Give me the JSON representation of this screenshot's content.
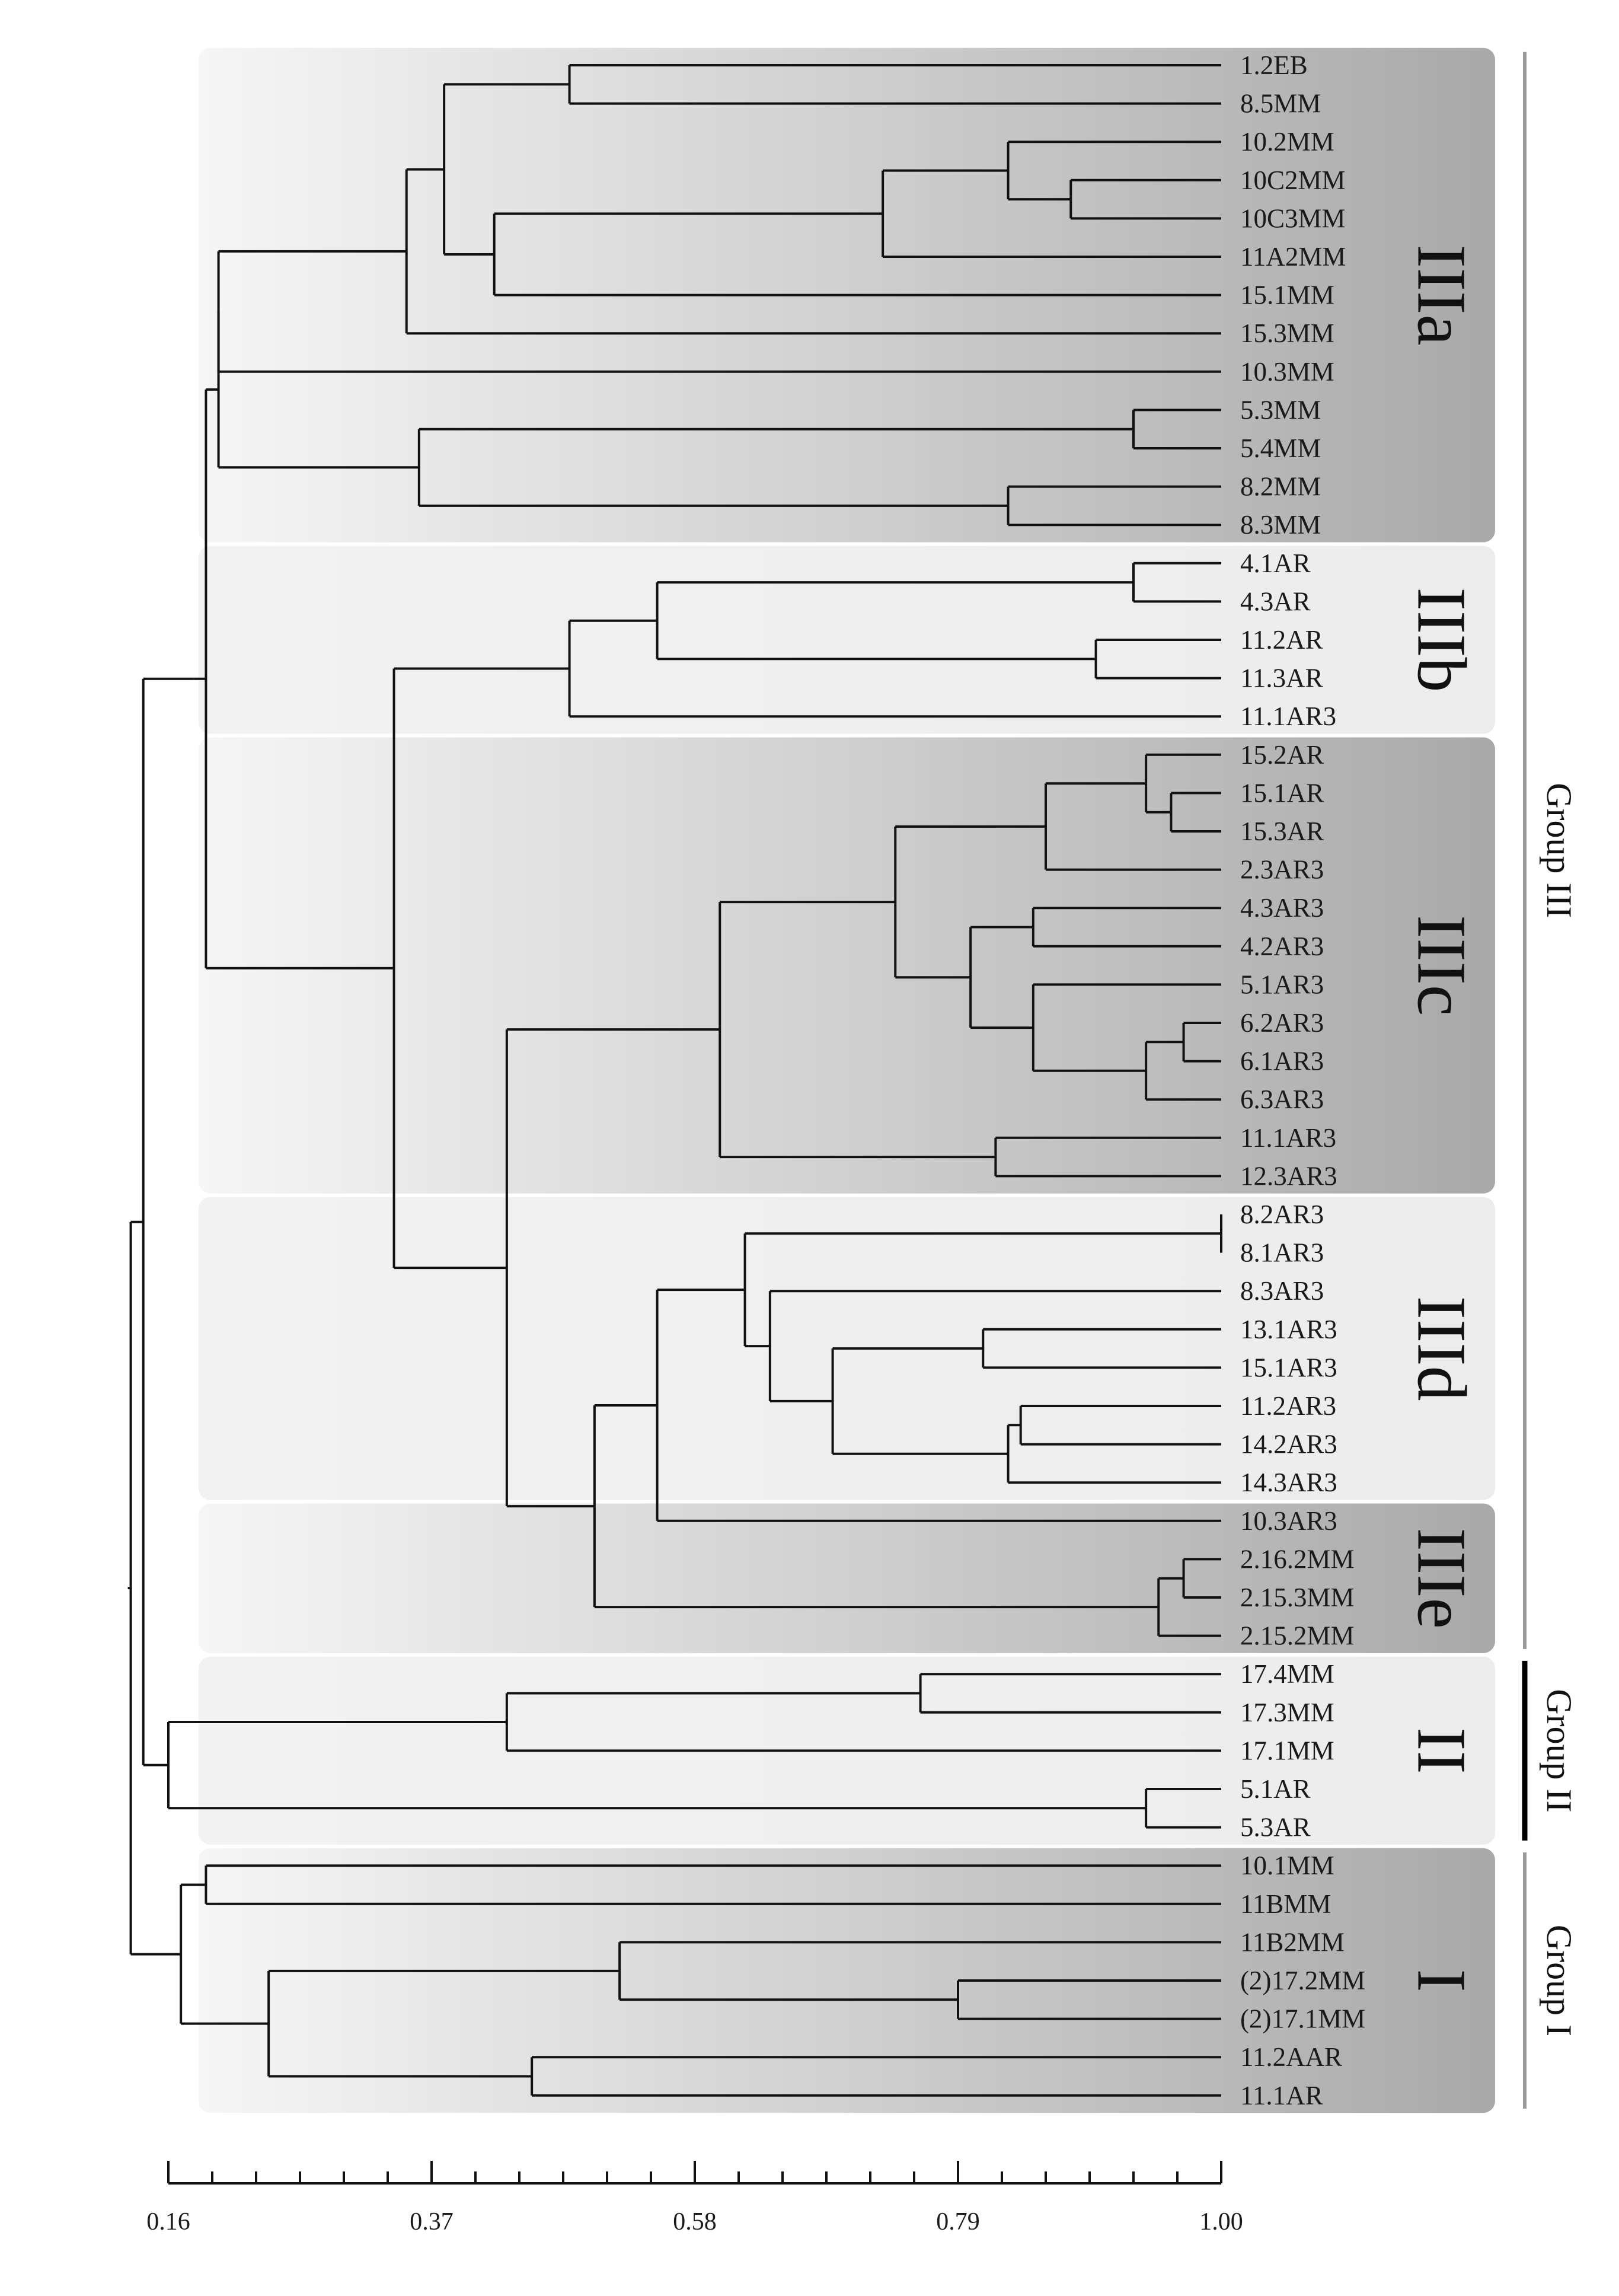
{
  "axis": {
    "ticks": [
      {
        "value": 0.16,
        "label": "0.16"
      },
      {
        "value": 0.37,
        "label": "0.37"
      },
      {
        "value": 0.58,
        "label": "0.58"
      },
      {
        "value": 0.79,
        "label": "0.79"
      },
      {
        "value": 1.0,
        "label": "1.00"
      }
    ],
    "min": 0.16,
    "max": 1.0
  },
  "leaves": [
    "1.2EB",
    "8.5MM",
    "10.2MM",
    "10C2MM",
    "10C3MM",
    "11A2MM",
    "15.1MM",
    "15.3MM",
    "10.3MM",
    "5.3MM",
    "5.4MM",
    "8.2MM",
    "8.3MM",
    "4.1AR",
    "4.3AR",
    "11.2AR",
    "11.3AR",
    "11.1AR3",
    "15.2AR",
    "15.1AR",
    "15.3AR",
    "2.3AR3",
    "4.3AR3",
    "4.2AR3",
    "5.1AR3",
    "6.2AR3",
    "6.1AR3",
    "6.3AR3",
    "11.1AR3",
    "12.3AR3",
    "8.2AR3",
    "8.1AR3",
    "8.3AR3",
    "13.1AR3",
    "15.1AR3",
    "11.2AR3",
    "14.2AR3",
    "14.3AR3",
    "10.3AR3",
    "2.16.2MM",
    "2.15.3MM",
    "2.15.2MM",
    "17.4MM",
    "17.3MM",
    "17.1MM",
    "5.1AR",
    "5.3AR",
    "10.1MM",
    "11BMM",
    "11B2MM",
    "(2)17.2MM",
    "(2)17.1MM",
    "11.2AAR",
    "11.1AR"
  ],
  "clusters": [
    {
      "label": "IIIa",
      "first": 0,
      "last": 12,
      "shade": "dark"
    },
    {
      "label": "IIIb",
      "first": 13,
      "last": 17,
      "shade": "light"
    },
    {
      "label": "IIIc",
      "first": 18,
      "last": 29,
      "shade": "dark"
    },
    {
      "label": "IIId",
      "first": 30,
      "last": 37,
      "shade": "light"
    },
    {
      "label": "IIIe",
      "first": 38,
      "last": 41,
      "shade": "dark"
    },
    {
      "label": "II",
      "first": 42,
      "last": 46,
      "shade": "light"
    },
    {
      "label": "I",
      "first": 47,
      "last": 53,
      "shade": "dark"
    }
  ],
  "groups": [
    {
      "label": "Group III",
      "first": 0,
      "last": 41,
      "style": "gray"
    },
    {
      "label": "Group II",
      "first": 42,
      "last": 46,
      "style": "black"
    },
    {
      "label": "Group I",
      "first": 47,
      "last": 53,
      "style": "gray"
    }
  ],
  "tree": {
    "s": 0.13,
    "c": [
      {
        "s": 0.14,
        "c": [
          {
            "s": 0.18,
            "c": [
              {
                "s": 0.19,
                "c": [
                  {
                    "s": 0.2,
                    "c": [
                      {
                        "s": 0.2,
                        "c": [
                          {
                            "s": 0.35,
                            "c": [
                              {
                                "s": 0.38,
                                "c": [
                                  {
                                    "s": 0.48,
                                    "c": [
                                      {
                                        "l": 0
                                      },
                                      {
                                        "l": 1
                                      }
                                    ]
                                  },
                                  {
                                    "s": 0.42,
                                    "c": [
                                      {
                                        "s": 0.73,
                                        "c": [
                                          {
                                            "s": 0.83,
                                            "c": [
                                              {
                                                "l": 2
                                              },
                                              {
                                                "s": 0.88,
                                                "c": [
                                                  {
                                                    "l": 3
                                                  },
                                                  {
                                                    "l": 4
                                                  }
                                                ]
                                              }
                                            ]
                                          },
                                          {
                                            "l": 5
                                          }
                                        ]
                                      },
                                      {
                                        "l": 6
                                      }
                                    ]
                                  }
                                ]
                              },
                              {
                                "l": 7
                              }
                            ]
                          },
                          {
                            "l": 8
                          }
                        ]
                      },
                      {
                        "s": 0.36,
                        "c": [
                          {
                            "s": 0.93,
                            "c": [
                              {
                                "l": 9
                              },
                              {
                                "l": 10
                              }
                            ]
                          },
                          {
                            "s": 0.83,
                            "c": [
                              {
                                "l": 11
                              },
                              {
                                "l": 12
                              }
                            ]
                          }
                        ]
                      }
                    ]
                  },
                  {
                    "s": 0.34,
                    "c": [
                      {
                        "s": 0.48,
                        "c": [
                          {
                            "s": 0.55,
                            "c": [
                              {
                                "s": 0.93,
                                "c": [
                                  {
                                    "l": 13
                                  },
                                  {
                                    "l": 14
                                  }
                                ]
                              },
                              {
                                "s": 0.9,
                                "c": [
                                  {
                                    "l": 15
                                  },
                                  {
                                    "l": 16
                                  }
                                ]
                              }
                            ]
                          },
                          {
                            "l": 17
                          }
                        ]
                      },
                      {
                        "s": 0.43,
                        "c": [
                          {
                            "s": 0.6,
                            "c": [
                              {
                                "s": 0.74,
                                "c": [
                                  {
                                    "s": 0.86,
                                    "c": [
                                      {
                                        "s": 0.94,
                                        "c": [
                                          {
                                            "l": 18
                                          },
                                          {
                                            "s": 0.96,
                                            "c": [
                                              {
                                                "l": 19
                                              },
                                              {
                                                "l": 20
                                              }
                                            ]
                                          }
                                        ]
                                      },
                                      {
                                        "l": 21
                                      }
                                    ]
                                  },
                                  {
                                    "s": 0.8,
                                    "c": [
                                      {
                                        "s": 0.85,
                                        "c": [
                                          {
                                            "l": 22
                                          },
                                          {
                                            "l": 23
                                          }
                                        ]
                                      },
                                      {
                                        "s": 0.85,
                                        "c": [
                                          {
                                            "l": 24
                                          },
                                          {
                                            "s": 0.94,
                                            "c": [
                                              {
                                                "s": 0.97,
                                                "c": [
                                                  {
                                                    "l": 25
                                                  },
                                                  {
                                                    "l": 26
                                                  }
                                                ]
                                              },
                                              {
                                                "l": 27
                                              }
                                            ]
                                          }
                                        ]
                                      }
                                    ]
                                  }
                                ]
                              },
                              {
                                "s": 0.82,
                                "c": [
                                  {
                                    "l": 28
                                  },
                                  {
                                    "l": 29
                                  }
                                ]
                              }
                            ]
                          },
                          {
                            "s": 0.5,
                            "c": [
                              {
                                "s": 0.55,
                                "c": [
                                  {
                                    "s": 0.62,
                                    "c": [
                                      {
                                        "s": 1.0,
                                        "c": [
                                          {
                                            "l": 30
                                          },
                                          {
                                            "l": 31
                                          }
                                        ]
                                      },
                                      {
                                        "s": 0.64,
                                        "c": [
                                          {
                                            "l": 32
                                          },
                                          {
                                            "s": 0.69,
                                            "c": [
                                              {
                                                "s": 0.81,
                                                "c": [
                                                  {
                                                    "l": 33
                                                  },
                                                  {
                                                    "l": 34
                                                  }
                                                ]
                                              },
                                              {
                                                "s": 0.83,
                                                "c": [
                                                  {
                                                    "s": 0.84,
                                                    "c": [
                                                      {
                                                        "l": 35
                                                      },
                                                      {
                                                        "l": 36
                                                      }
                                                    ]
                                                  },
                                                  {
                                                    "l": 37
                                                  }
                                                ]
                                              }
                                            ]
                                          }
                                        ]
                                      }
                                    ]
                                  },
                                  {
                                    "l": 38
                                  }
                                ]
                              },
                              {
                                "s": 0.95,
                                "c": [
                                  {
                                    "s": 0.97,
                                    "c": [
                                      {
                                        "l": 39
                                      },
                                      {
                                        "l": 40
                                      }
                                    ]
                                  },
                                  {
                                    "l": 41
                                  }
                                ]
                              }
                            ]
                          }
                        ]
                      }
                    ]
                  }
                ]
              }
            ]
          },
          {
            "s": 0.16,
            "c": [
              {
                "s": 0.43,
                "c": [
                  {
                    "s": 0.76,
                    "c": [
                      {
                        "l": 42
                      },
                      {
                        "l": 43
                      }
                    ]
                  },
                  {
                    "l": 44
                  }
                ]
              },
              {
                "s": 0.94,
                "c": [
                  {
                    "l": 45
                  },
                  {
                    "l": 46
                  }
                ]
              }
            ]
          }
        ]
      },
      {
        "s": 0.17,
        "c": [
          {
            "s": 0.19,
            "c": [
              {
                "l": 47
              },
              {
                "l": 48
              }
            ]
          },
          {
            "s": 0.24,
            "c": [
              {
                "s": 0.52,
                "c": [
                  {
                    "l": 49
                  },
                  {
                    "s": 0.79,
                    "c": [
                      {
                        "l": 50
                      },
                      {
                        "l": 51
                      }
                    ]
                  }
                ]
              },
              {
                "s": 0.45,
                "c": [
                  {
                    "l": 52
                  },
                  {
                    "l": 53
                  }
                ]
              }
            ]
          }
        ]
      }
    ]
  }
}
